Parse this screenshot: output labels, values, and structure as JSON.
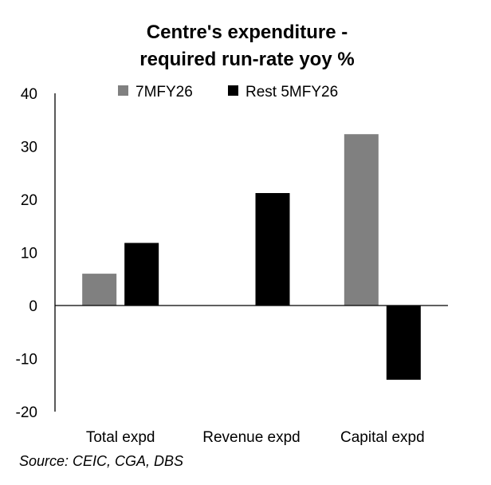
{
  "chart_data": {
    "type": "bar",
    "title_lines": [
      "Centre's expenditure -",
      "required run-rate yoy %"
    ],
    "categories": [
      "Total expd",
      "Revenue expd",
      "Capital expd"
    ],
    "series": [
      {
        "name": "7MFY26",
        "color": "#808080",
        "values": [
          6,
          null,
          32.3
        ]
      },
      {
        "name": "Rest 5MFY26",
        "color": "#000000",
        "values": [
          11.8,
          21.2,
          -14
        ]
      }
    ],
    "ylim": [
      -20,
      40
    ],
    "yticks": [
      "-20",
      "-10",
      "0",
      "10",
      "20",
      "30",
      "40"
    ],
    "xlabel": "",
    "ylabel": "",
    "legend_position": "top",
    "grid": false
  },
  "source_note": "Source: CEIC, CGA, DBS"
}
